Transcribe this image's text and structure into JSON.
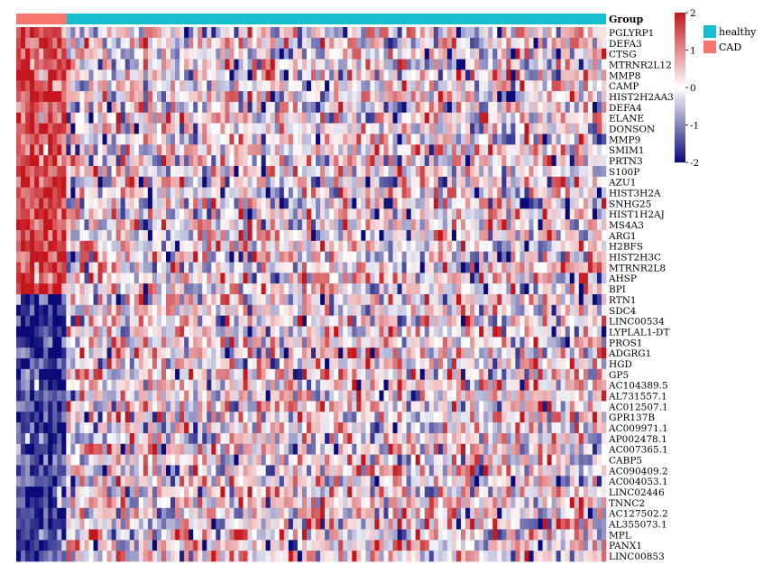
{
  "chart_data": {
    "type": "heatmap",
    "annotation_label": "Group",
    "groups": [
      {
        "name": "CAD",
        "color": "#F8766D",
        "n_samples": 11
      },
      {
        "name": "healthy",
        "color": "#17BECF",
        "n_samples": 119
      }
    ],
    "legend_groups": [
      "healthy",
      "CAD"
    ],
    "color_scale": {
      "min": -2,
      "mid": 0,
      "max": 2,
      "low_color": "#0A0A78",
      "mid_color": "#FFFFFF",
      "high_color": "#C4161C",
      "ticks": [
        "2",
        "1",
        "0",
        "-1",
        "-2"
      ]
    },
    "rows": [
      "PGLYRP1",
      "DEFA3",
      "CTSG",
      "MTRNR2L12",
      "MMP8",
      "CAMP",
      "HIST2H2AA3",
      "DEFA4",
      "ELANE",
      "DONSON",
      "MMP9",
      "SMIM1",
      "PRTN3",
      "S100P",
      "AZU1",
      "HIST3H2A",
      "SNHG25",
      "HIST1H2AJ",
      "MS4A3",
      "ARG1",
      "H2BFS",
      "HIST2H3C",
      "MTRNR2L8",
      "AHSP",
      "BPI",
      "RTN1",
      "SDC4",
      "LINC00534",
      "LYPLAL1-DT",
      "PROS1",
      "ADGRG1",
      "HGD",
      "GP5",
      "AC104389.5",
      "AL731557.1",
      "AC012507.1",
      "GPR137B",
      "AC009971.1",
      "AP002478.1",
      "AC007365.1",
      "CABP5",
      "AC090409.2",
      "AC004053.1",
      "LINC02446",
      "TNNC2",
      "AC127502.2",
      "AL355073.1",
      "MPL",
      "PANX1",
      "LINC00853"
    ],
    "n_up_rows": 25,
    "expression_pattern": {
      "up_rows_in_CAD": 1.5,
      "down_rows_in_CAD": -1.6,
      "up_rows_in_healthy": 0.0,
      "down_rows_in_healthy": 0.1
    }
  }
}
